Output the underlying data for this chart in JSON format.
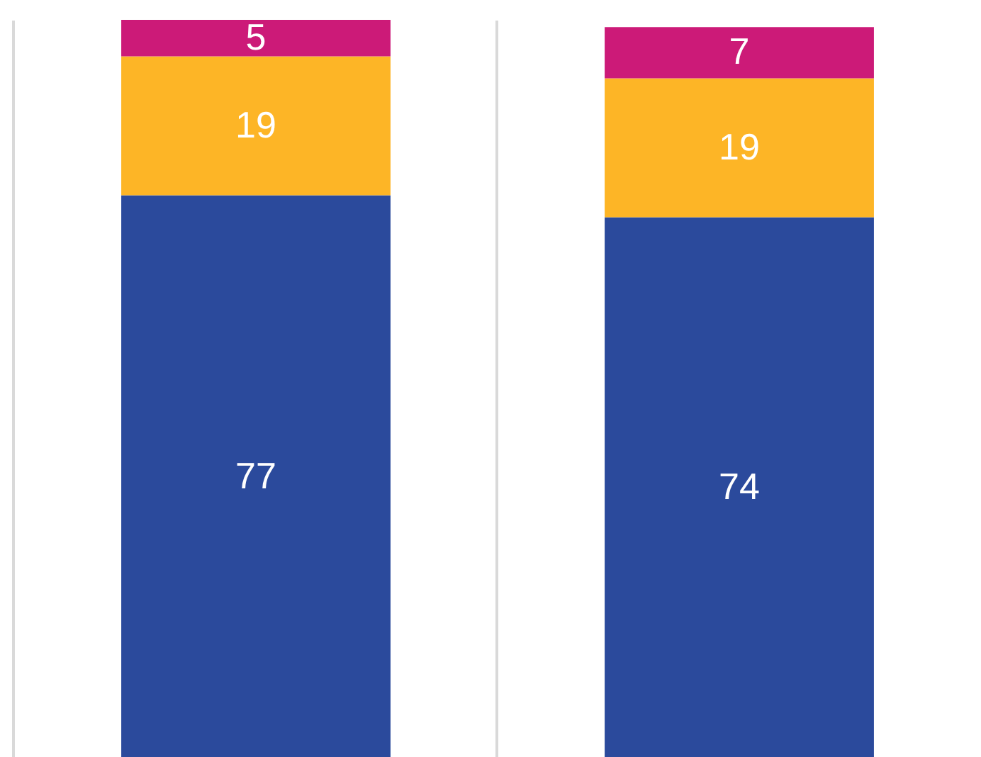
{
  "chart_data": {
    "type": "bar",
    "stacked": true,
    "categories": [
      null,
      null
    ],
    "series": [
      {
        "color": "#2b4a9c",
        "values": [
          77,
          74
        ]
      },
      {
        "color": "#fdb526",
        "values": [
          19,
          19
        ]
      },
      {
        "color": "#cc1a78",
        "values": [
          5,
          7
        ]
      }
    ],
    "ylim": [
      0,
      101
    ],
    "data_labels": true,
    "grid": "x",
    "legend": false,
    "tick_labels": false
  }
}
